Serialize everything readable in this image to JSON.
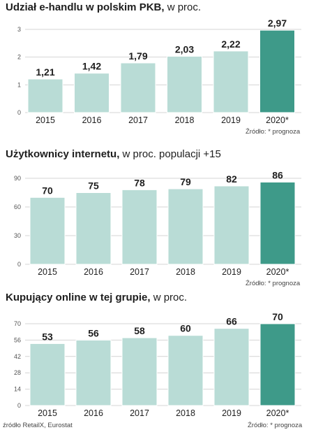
{
  "colors": {
    "bar": "#b9dcd6",
    "highlight": "#3e9a89",
    "grid": "#d4d4d4",
    "text": "#1e1e1e"
  },
  "footer": {
    "source": "źródło RetailX, Eurostat",
    "note": "Źródło: * prognoza"
  },
  "panels": [
    {
      "title_bold": "Udział e-handlu w polskim PKB,",
      "title_rest": " w proc.",
      "note": "Źródło: * prognoza",
      "chart_data": {
        "type": "bar",
        "categories": [
          "2015",
          "2016",
          "2017",
          "2018",
          "2019",
          "2020*"
        ],
        "values": [
          1.21,
          1.42,
          1.79,
          2.03,
          2.22,
          2.97
        ],
        "value_labels": [
          "1,21",
          "1,42",
          "1,79",
          "2,03",
          "2,22",
          "2,97"
        ],
        "yticks": [
          "0",
          "1",
          "2",
          "3"
        ],
        "ylim": [
          0,
          3
        ],
        "highlight": [
          5
        ],
        "grid": true
      }
    },
    {
      "title_bold": "Użytkownicy internetu,",
      "title_rest": " w proc. populacji +15",
      "note": "Źródło: * prognoza",
      "chart_data": {
        "type": "bar",
        "categories": [
          "2015",
          "2016",
          "2017",
          "2018",
          "2019",
          "2020*"
        ],
        "values": [
          70,
          75,
          78,
          79,
          82,
          86
        ],
        "value_labels": [
          "70",
          "75",
          "78",
          "79",
          "82",
          "86"
        ],
        "yticks": [
          "0",
          "30",
          "60",
          "90"
        ],
        "ylim": [
          0,
          90
        ],
        "highlight": [
          5
        ],
        "grid": true
      }
    },
    {
      "title_bold": "Kupujący online w tej grupie,",
      "title_rest": " w proc.",
      "note": "",
      "chart_data": {
        "type": "bar",
        "categories": [
          "2015",
          "2016",
          "2017",
          "2018",
          "2019",
          "2020*"
        ],
        "values": [
          53,
          56,
          58,
          60,
          66,
          70
        ],
        "value_labels": [
          "53",
          "56",
          "58",
          "60",
          "66",
          "70"
        ],
        "yticks": [
          "0",
          "14",
          "28",
          "42",
          "56",
          "70"
        ],
        "ylim": [
          0,
          70
        ],
        "highlight": [
          5
        ],
        "grid": true
      }
    }
  ]
}
